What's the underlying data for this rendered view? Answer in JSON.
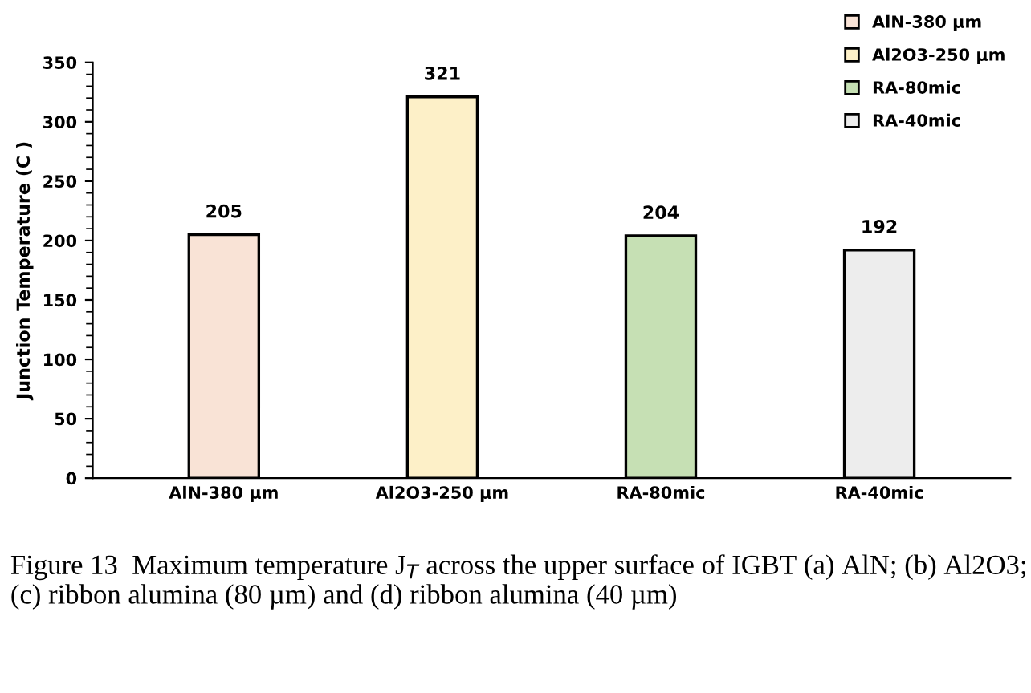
{
  "chart_data": {
    "type": "bar",
    "ylabel": "Junction Temperature (C )",
    "categories": [
      "AlN-380 µm",
      "Al2O3-250 µm",
      "RA-80mic",
      "RA-40mic"
    ],
    "series": [
      {
        "name": "AlN-380 µm",
        "color": "#f9e3d6",
        "values": [
          205,
          null,
          null,
          null
        ]
      },
      {
        "name": "Al2O3-250 µm",
        "color": "#fdf0c8",
        "values": [
          null,
          321,
          null,
          null
        ]
      },
      {
        "name": "RA-80mic",
        "color": "#c6e0b4",
        "values": [
          null,
          null,
          204,
          null
        ]
      },
      {
        "name": "RA-40mic",
        "color": "#ededed",
        "values": [
          null,
          null,
          null,
          192
        ]
      }
    ],
    "ylim": [
      0,
      350
    ],
    "yticks": [
      0,
      50,
      100,
      150,
      200,
      250,
      300,
      350
    ],
    "grid": false,
    "legend": "top right",
    "data_labels": true,
    "annotations": [
      "Figure 13  Maximum temperature J$_{T}$ across the upper surface of IGBT (a) AlN; (b) Al2O3; (c) ribbon alumina (80 µm) and (d) ribbon alumina (40 µm)"
    ]
  }
}
